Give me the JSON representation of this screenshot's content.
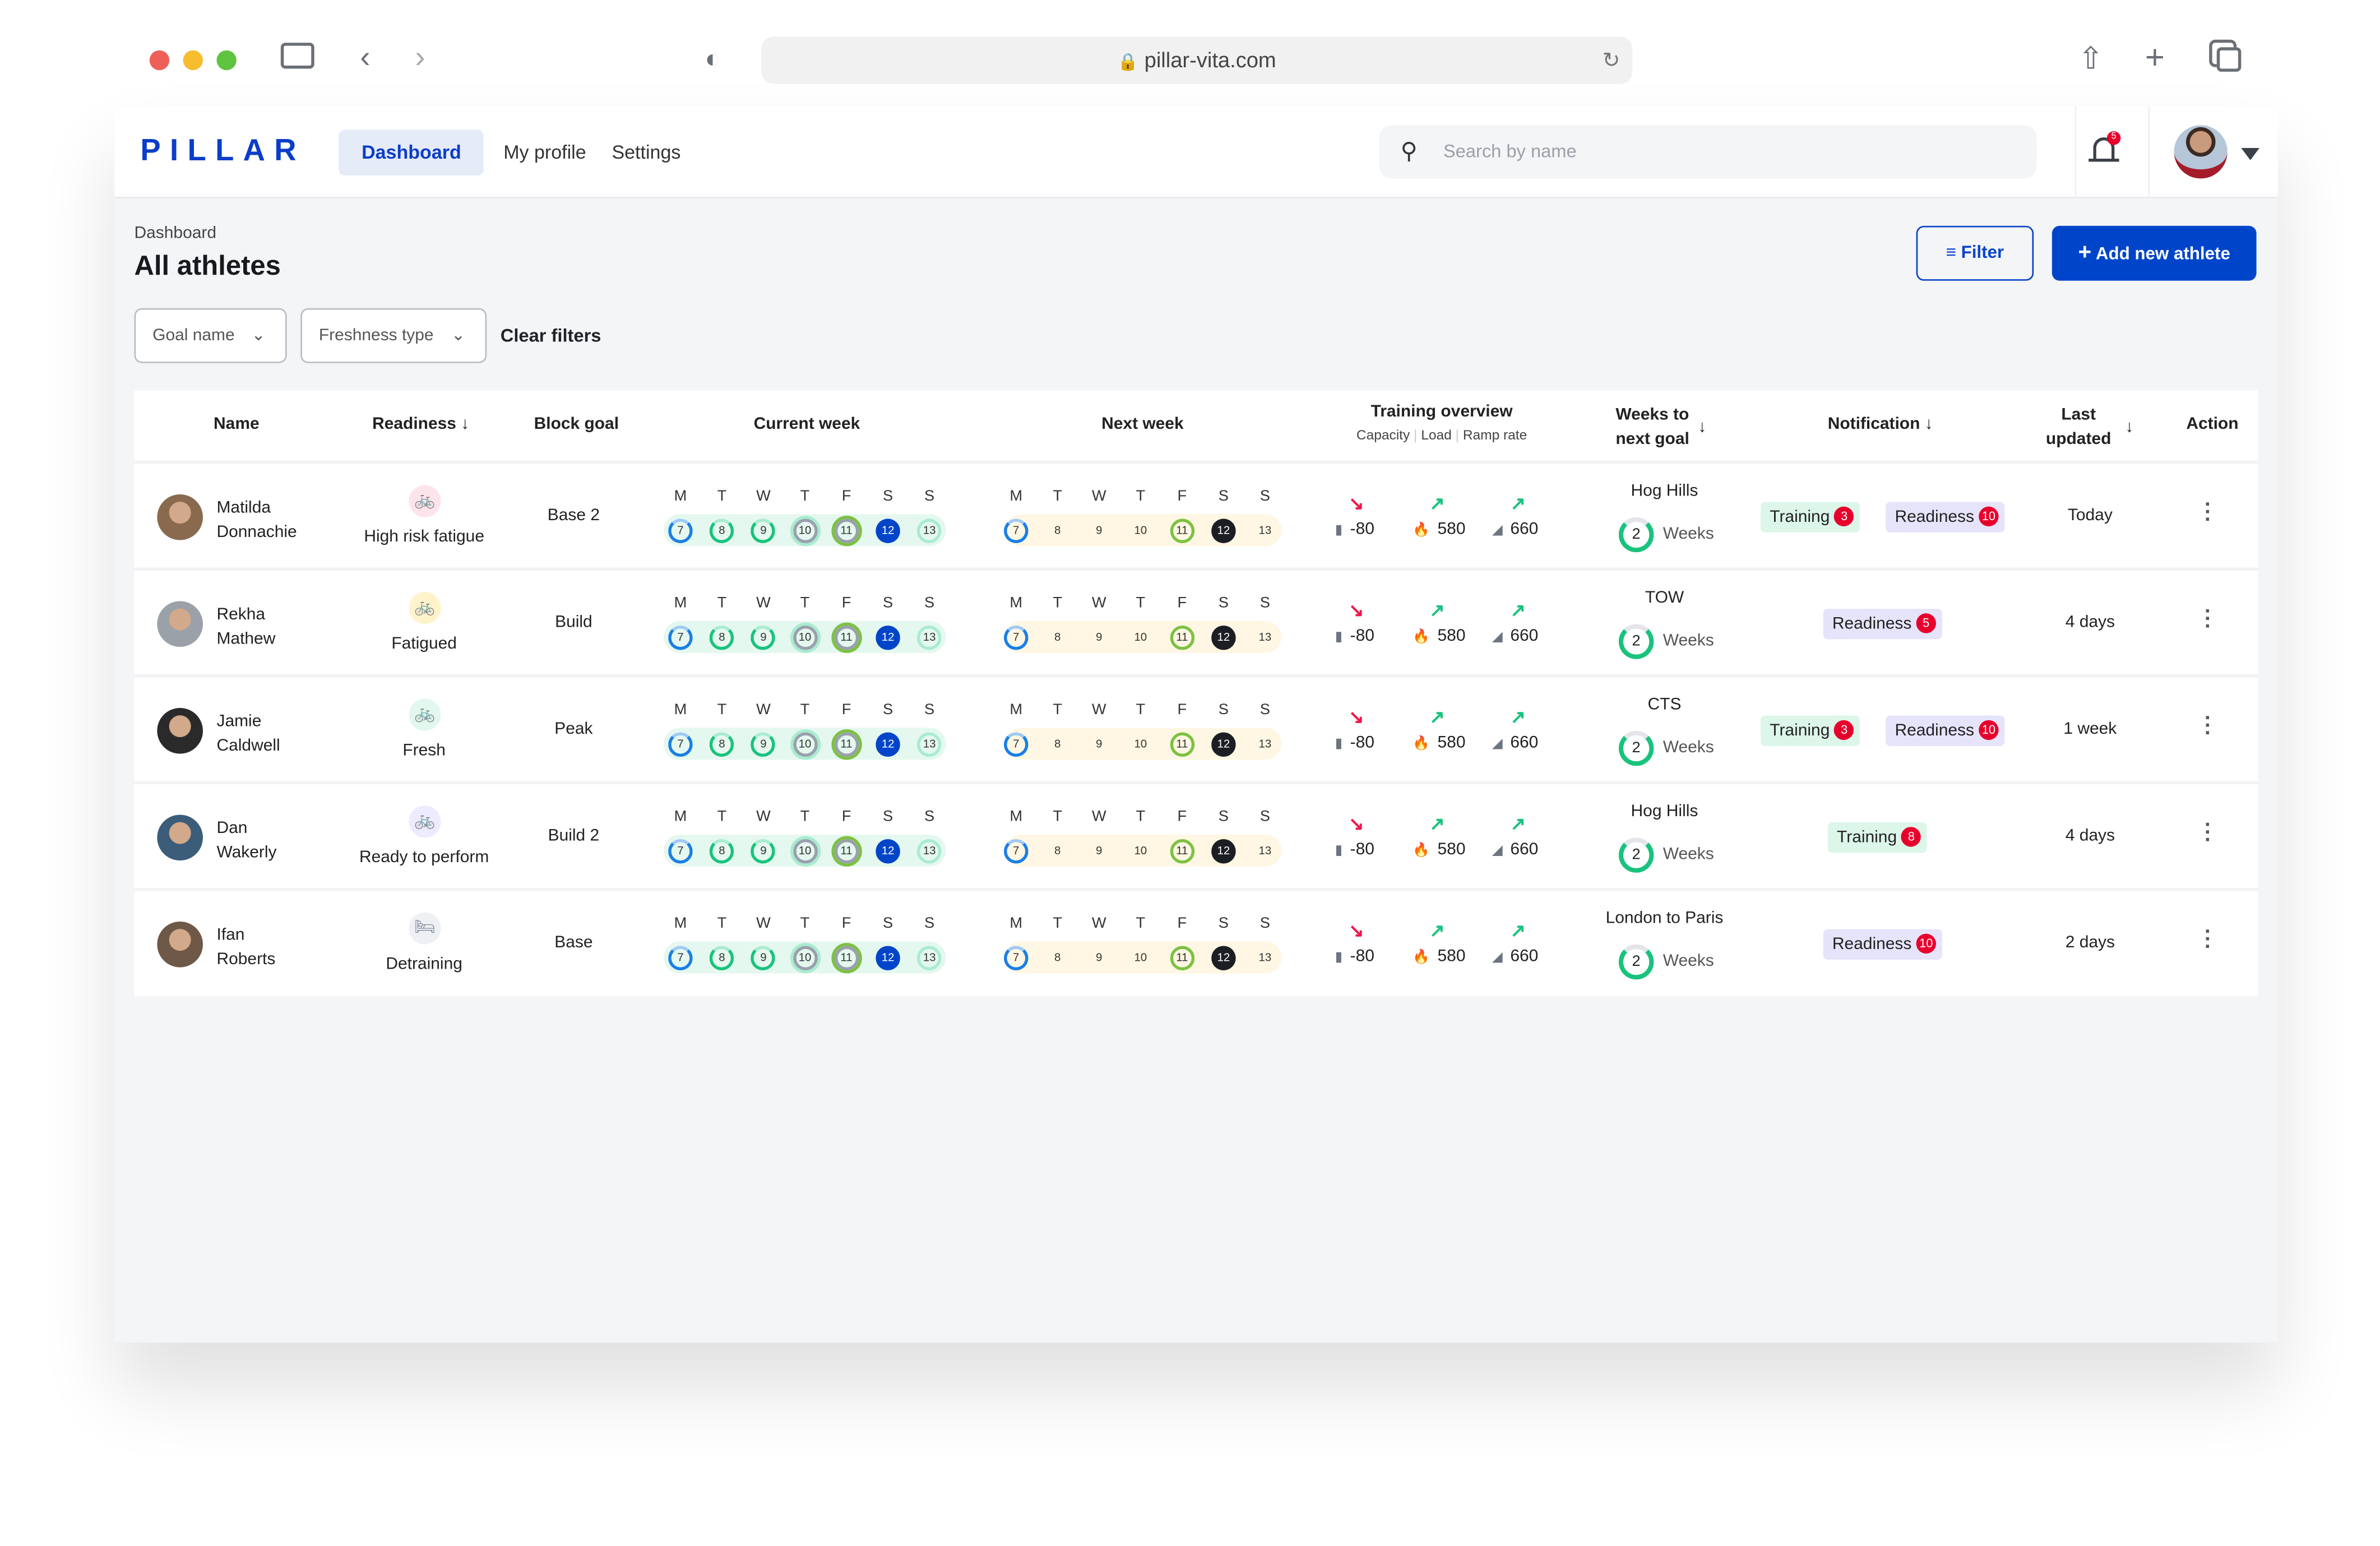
{
  "browser": {
    "url": "pillar-vita.com"
  },
  "app": {
    "logo": "PILLAR",
    "nav": [
      "Dashboard",
      "My profile",
      "Settings"
    ],
    "search_placeholder": "Search by name",
    "bell_count": "5"
  },
  "page": {
    "breadcrumb": "Dashboard",
    "title": "All athletes",
    "filter_label": "Filter",
    "add_label": "Add new athlete",
    "filters": [
      "Goal name",
      "Freshness type"
    ],
    "clear_filters": "Clear filters"
  },
  "columns": {
    "name": "Name",
    "readiness": "Readiness",
    "block_goal": "Block goal",
    "current_week": "Current week",
    "next_week": "Next week",
    "training_overview": "Training overview",
    "capacity": "Capacity",
    "load": "Load",
    "ramp_rate": "Ramp rate",
    "weeks_to": "Weeks to",
    "next_goal": "next goal",
    "notification": "Notification",
    "last": "Last",
    "updated": "updated",
    "action": "Action"
  },
  "weekdays": [
    "M",
    "T",
    "W",
    "T",
    "F",
    "S",
    "S"
  ],
  "current_week": [
    {
      "d": "7",
      "s": "blue-ring"
    },
    {
      "d": "8",
      "s": "green-ring"
    },
    {
      "d": "9",
      "s": "green-ring"
    },
    {
      "d": "10",
      "s": "gray-ring"
    },
    {
      "d": "11",
      "s": "lime-gray-ring"
    },
    {
      "d": "12",
      "s": "blue-fill"
    },
    {
      "d": "13",
      "s": "mint-ring"
    }
  ],
  "next_week": [
    {
      "d": "7",
      "s": "blue-ring"
    },
    {
      "d": "8",
      "s": "plain"
    },
    {
      "d": "9",
      "s": "plain"
    },
    {
      "d": "10",
      "s": "plain"
    },
    {
      "d": "11",
      "s": "lime-ring"
    },
    {
      "d": "12",
      "s": "black-fill"
    },
    {
      "d": "13",
      "s": "plain"
    }
  ],
  "weeks_unit": "Weeks",
  "athletes": [
    {
      "first": "Matilda",
      "last": "Donnachie",
      "readiness": "High risk fatigue",
      "rcolor": "#f0174b",
      "rbg": "#fde4ea",
      "block_goal": "Base 2",
      "capacity": "-80",
      "load": "580",
      "ramp": "660",
      "goal": "Hog Hills",
      "weeks": "2",
      "notifications": [
        {
          "label": "Training",
          "count": "3",
          "type": "training"
        },
        {
          "label": "Readiness",
          "count": "10",
          "type": "readiness"
        }
      ],
      "updated": "Today",
      "avatar": "#8a6a4f"
    },
    {
      "first": "Rekha",
      "last": "Mathew",
      "readiness": "Fatigued",
      "rcolor": "#f5b800",
      "rbg": "#fff3cc",
      "block_goal": "Build",
      "capacity": "-80",
      "load": "580",
      "ramp": "660",
      "goal": "TOW",
      "weeks": "2",
      "notifications": [
        {
          "label": "Readiness",
          "count": "5",
          "type": "readiness"
        }
      ],
      "updated": "4 days",
      "avatar": "#9aa1a8"
    },
    {
      "first": "Jamie",
      "last": "Caldwell",
      "readiness": "Fresh",
      "rcolor": "#19c37d",
      "rbg": "#e2f8ee",
      "block_goal": "Peak",
      "capacity": "-80",
      "load": "580",
      "ramp": "660",
      "goal": "CTS",
      "weeks": "2",
      "notifications": [
        {
          "label": "Training",
          "count": "3",
          "type": "training"
        },
        {
          "label": "Readiness",
          "count": "10",
          "type": "readiness"
        }
      ],
      "updated": "1 week",
      "avatar": "#2a2a2a"
    },
    {
      "first": "Dan",
      "last": "Wakerly",
      "readiness": "Ready to perform",
      "rcolor": "#6a5cff",
      "rbg": "#ecebff",
      "block_goal": "Build 2",
      "capacity": "-80",
      "load": "580",
      "ramp": "660",
      "goal": "Hog Hills",
      "weeks": "2",
      "notifications": [
        {
          "label": "Training",
          "count": "8",
          "type": "training"
        }
      ],
      "updated": "4 days",
      "avatar": "#3b5d7a"
    },
    {
      "first": "Ifan",
      "last": "Roberts",
      "readiness": "Detraining",
      "rcolor": "#7b8494",
      "rbg": "#eef0f3",
      "block_goal": "Base",
      "capacity": "-80",
      "load": "580",
      "ramp": "660",
      "goal": "London to Paris",
      "weeks": "2",
      "notifications": [
        {
          "label": "Readiness",
          "count": "10",
          "type": "readiness"
        }
      ],
      "updated": "2 days",
      "avatar": "#6e5847"
    }
  ]
}
